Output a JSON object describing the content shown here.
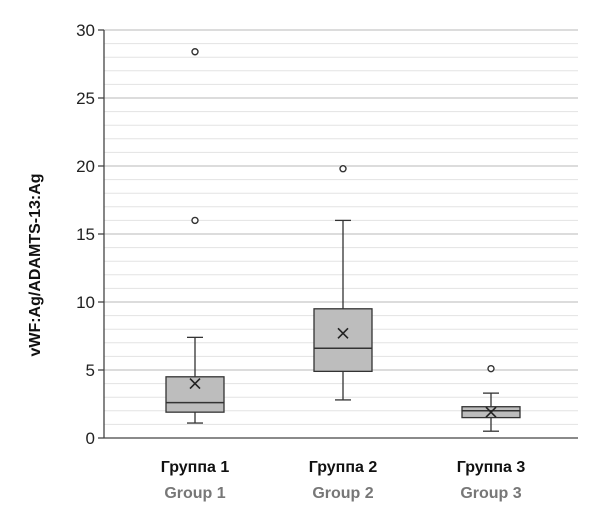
{
  "chart_data": {
    "type": "box",
    "ylabel": "vWF:Ag/ADAMTS-13:Ag",
    "ylim": [
      0,
      30
    ],
    "y_ticks": [
      0,
      5,
      10,
      15,
      20,
      25,
      30
    ],
    "minor_step": 1,
    "grid": true,
    "categories": [
      {
        "label": "Группа 1",
        "label_en": "Group 1"
      },
      {
        "label": "Группа 2",
        "label_en": "Group 2"
      },
      {
        "label": "Группа 3",
        "label_en": "Group 3"
      }
    ],
    "series": [
      {
        "min": 1.1,
        "q1": 1.9,
        "median": 2.6,
        "q3": 4.5,
        "max": 7.4,
        "mean": 4.0,
        "outliers": [
          16.0,
          28.4
        ]
      },
      {
        "min": 2.8,
        "q1": 4.9,
        "median": 6.6,
        "q3": 9.5,
        "max": 16.0,
        "mean": 7.7,
        "outliers": [
          19.8
        ]
      },
      {
        "min": 0.5,
        "q1": 1.5,
        "median": 2.0,
        "q3": 2.3,
        "max": 3.3,
        "mean": 1.9,
        "outliers": [
          5.1
        ]
      }
    ],
    "colors": {
      "box_fill": "#bdbdbd",
      "stroke": "#333333",
      "grid_major": "#c8c8c8",
      "grid_minor": "#e3e3e3"
    }
  }
}
